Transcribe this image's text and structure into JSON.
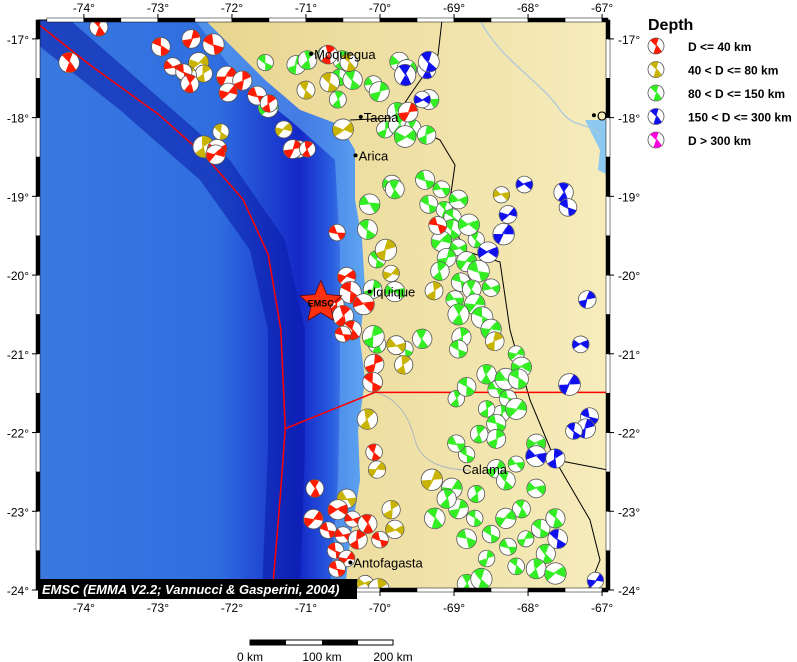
{
  "map": {
    "lon_range": [
      -74.62,
      -66.92
    ],
    "lat_range": [
      -24.0,
      -16.76
    ],
    "lon_ticks": [
      -74,
      -73,
      -72,
      -71,
      -70,
      -69,
      -68,
      -67
    ],
    "lat_ticks": [
      -17,
      -18,
      -19,
      -20,
      -21,
      -22,
      -23,
      -24
    ],
    "lon_tick_labels": [
      "-74°",
      "-73°",
      "-72°",
      "-71°",
      "-70°",
      "-69°",
      "-68°",
      "-67°"
    ],
    "lat_tick_labels": [
      "-17°",
      "-18°",
      "-19°",
      "-20°",
      "-21°",
      "-22°",
      "-23°",
      "-24°"
    ],
    "credit": "EMSC (EMMA V2.2; Vannucci & Gasperini, 2004)",
    "star": {
      "label": "EMSC",
      "lon": -70.8,
      "lat": -20.35,
      "color": "#ff3010"
    },
    "cities": [
      {
        "name": "Moquegua",
        "lon": -70.93,
        "lat": -17.19
      },
      {
        "name": "Tacna",
        "lon": -70.26,
        "lat": -17.99
      },
      {
        "name": "Arica",
        "lon": -70.33,
        "lat": -18.48
      },
      {
        "name": "Iquique",
        "lon": -70.14,
        "lat": -20.21
      },
      {
        "name": "Calama",
        "lon": -68.93,
        "lat": -22.46,
        "nodot": true
      },
      {
        "name": "Antofagasta",
        "lon": -70.4,
        "lat": -23.65
      },
      {
        "name": "O",
        "lon": -67.11,
        "lat": -17.97
      }
    ],
    "plate_boundaries": [
      [
        [
          -74.62,
          -16.81
        ],
        [
          -73.92,
          -17.33
        ],
        [
          -72.99,
          -17.96
        ],
        [
          -72.38,
          -18.47
        ],
        [
          -71.85,
          -19.04
        ],
        [
          -71.51,
          -19.74
        ],
        [
          -71.34,
          -20.69
        ],
        [
          -71.28,
          -21.95
        ],
        [
          -71.35,
          -22.84
        ],
        [
          -71.45,
          -23.98
        ]
      ],
      [
        [
          -71.28,
          -21.95
        ],
        [
          -70.07,
          -21.49
        ],
        [
          -66.92,
          -21.49
        ]
      ]
    ],
    "colors": {
      "d40": "#ff1a00",
      "d80": "#c8b400",
      "d150": "#33ee22",
      "d300": "#1010ee",
      "d300plus": "#ff00dd",
      "plate_boundary": "#ff0000"
    }
  },
  "legend": {
    "title": "Depth",
    "items": [
      {
        "label": "D <= 40 km",
        "class": "d40"
      },
      {
        "label": "40 < D <= 80 km",
        "class": "d80"
      },
      {
        "label": "80 < D <= 150 km",
        "class": "d150"
      },
      {
        "label": "150 < D <= 300 km",
        "class": "d300"
      },
      {
        "label": "D > 300 km",
        "class": "d300plus"
      }
    ]
  },
  "scale_bar": {
    "labels": [
      "0 km",
      "100 km",
      "200 km"
    ]
  },
  "events": {
    "d40": [
      [
        -73.8,
        -16.85
      ],
      [
        -74.2,
        -17.3
      ],
      [
        -72.96,
        -17.1
      ],
      [
        -72.55,
        -17.0
      ],
      [
        -72.25,
        -17.07
      ],
      [
        -72.8,
        -17.35
      ],
      [
        -72.65,
        -17.42
      ],
      [
        -72.57,
        -17.57
      ],
      [
        -72.07,
        -17.48
      ],
      [
        -71.86,
        -17.53
      ],
      [
        -72.05,
        -17.68
      ],
      [
        -71.66,
        -17.72
      ],
      [
        -71.5,
        -17.82
      ],
      [
        -72.2,
        -18.4
      ],
      [
        -72.22,
        -18.47
      ],
      [
        -71.18,
        -18.4
      ],
      [
        -70.98,
        -18.4
      ],
      [
        -70.7,
        -17.2
      ],
      [
        -69.62,
        -17.93
      ],
      [
        -70.58,
        -19.46
      ],
      [
        -70.45,
        -20.02
      ],
      [
        -70.4,
        -20.22
      ],
      [
        -70.6,
        -20.37
      ],
      [
        -70.5,
        -20.52
      ],
      [
        -70.22,
        -20.37
      ],
      [
        -70.38,
        -20.7
      ],
      [
        -70.5,
        -20.75
      ],
      [
        -70.08,
        -21.13
      ],
      [
        -70.1,
        -21.36
      ],
      [
        -70.88,
        -22.71
      ],
      [
        -70.9,
        -23.1
      ],
      [
        -70.57,
        -22.98
      ],
      [
        -70.37,
        -23.1
      ],
      [
        -70.7,
        -23.24
      ],
      [
        -70.5,
        -23.3
      ],
      [
        -70.3,
        -23.36
      ],
      [
        -70.17,
        -23.16
      ],
      [
        -70.6,
        -23.5
      ],
      [
        -70.45,
        -23.6
      ],
      [
        -70.58,
        -23.73
      ],
      [
        -70.0,
        -23.36
      ],
      [
        -70.08,
        -22.25
      ],
      [
        -69.22,
        -19.37
      ]
    ],
    "d80": [
      [
        -72.45,
        -17.3
      ],
      [
        -72.38,
        -17.44
      ],
      [
        -72.6,
        -17.46
      ],
      [
        -72.38,
        -18.37
      ],
      [
        -72.15,
        -18.18
      ],
      [
        -71.3,
        -18.15
      ],
      [
        -71.1,
        -18.4
      ],
      [
        -70.42,
        -17.3
      ],
      [
        -70.68,
        -17.55
      ],
      [
        -70.5,
        -18.15
      ],
      [
        -71.0,
        -17.65
      ],
      [
        -69.92,
        -19.68
      ],
      [
        -69.85,
        -19.98
      ],
      [
        -69.78,
        -20.89
      ],
      [
        -69.68,
        -21.14
      ],
      [
        -69.27,
        -20.2
      ],
      [
        -68.36,
        -18.98
      ],
      [
        -68.45,
        -20.84
      ],
      [
        -69.3,
        -22.6
      ],
      [
        -69.8,
        -23.23
      ],
      [
        -69.85,
        -22.98
      ],
      [
        -70.2,
        -23.92
      ],
      [
        -70.02,
        -23.99
      ],
      [
        -70.45,
        -22.84
      ],
      [
        -70.71,
        -20.37
      ],
      [
        -70.17,
        -21.83
      ],
      [
        -70.04,
        -22.47
      ]
    ],
    "d150": [
      [
        -71.13,
        -17.33
      ],
      [
        -70.73,
        -17.2
      ],
      [
        -70.51,
        -17.27
      ],
      [
        -70.55,
        -17.49
      ],
      [
        -70.37,
        -17.52
      ],
      [
        -70.09,
        -17.58
      ],
      [
        -70.01,
        -17.67
      ],
      [
        -69.74,
        -17.29
      ],
      [
        -69.64,
        -17.39
      ],
      [
        -69.77,
        -17.93
      ],
      [
        -69.93,
        -18.15
      ],
      [
        -69.74,
        -18.09
      ],
      [
        -69.56,
        -18.13
      ],
      [
        -69.66,
        -18.24
      ],
      [
        -69.37,
        -18.22
      ],
      [
        -69.34,
        -17.77
      ],
      [
        -70.57,
        -17.77
      ],
      [
        -69.84,
        -18.85
      ],
      [
        -69.39,
        -18.79
      ],
      [
        -69.17,
        -18.91
      ],
      [
        -69.34,
        -19.1
      ],
      [
        -69.13,
        -19.17
      ],
      [
        -69.02,
        -19.27
      ],
      [
        -68.94,
        -19.04
      ],
      [
        -69.03,
        -19.42
      ],
      [
        -69.17,
        -19.57
      ],
      [
        -68.94,
        -19.65
      ],
      [
        -69.1,
        -19.78
      ],
      [
        -68.7,
        -19.55
      ],
      [
        -68.83,
        -19.83
      ],
      [
        -68.67,
        -19.95
      ],
      [
        -69.19,
        -19.95
      ],
      [
        -68.91,
        -20.09
      ],
      [
        -68.76,
        -20.18
      ],
      [
        -68.5,
        -20.16
      ],
      [
        -68.72,
        -20.37
      ],
      [
        -68.99,
        -20.31
      ],
      [
        -68.94,
        -20.5
      ],
      [
        -68.62,
        -20.54
      ],
      [
        -68.5,
        -20.69
      ],
      [
        -68.9,
        -20.79
      ],
      [
        -68.94,
        -20.94
      ],
      [
        -70.04,
        -19.8
      ],
      [
        -69.8,
        -20.21
      ],
      [
        -70.04,
        -20.88
      ],
      [
        -69.66,
        -20.94
      ],
      [
        -69.43,
        -20.81
      ],
      [
        -68.97,
        -21.57
      ],
      [
        -68.83,
        -21.42
      ],
      [
        -68.56,
        -21.26
      ],
      [
        -68.43,
        -21.45
      ],
      [
        -68.3,
        -21.32
      ],
      [
        -68.16,
        -21.0
      ],
      [
        -68.09,
        -21.17
      ],
      [
        -68.13,
        -21.32
      ],
      [
        -68.27,
        -21.57
      ],
      [
        -68.36,
        -21.76
      ],
      [
        -68.56,
        -21.7
      ],
      [
        -68.43,
        -21.89
      ],
      [
        -68.16,
        -21.7
      ],
      [
        -68.43,
        -22.08
      ],
      [
        -68.66,
        -22.02
      ],
      [
        -68.83,
        -22.28
      ],
      [
        -68.97,
        -22.14
      ],
      [
        -69.03,
        -22.71
      ],
      [
        -68.7,
        -22.78
      ],
      [
        -68.94,
        -22.97
      ],
      [
        -68.43,
        -22.46
      ],
      [
        -68.3,
        -22.61
      ],
      [
        -68.16,
        -22.4
      ],
      [
        -67.89,
        -22.71
      ],
      [
        -68.09,
        -22.97
      ],
      [
        -68.3,
        -23.09
      ],
      [
        -68.5,
        -23.29
      ],
      [
        -68.72,
        -23.09
      ],
      [
        -68.56,
        -23.6
      ],
      [
        -68.27,
        -23.45
      ],
      [
        -68.03,
        -23.35
      ],
      [
        -67.83,
        -23.22
      ],
      [
        -67.63,
        -23.09
      ],
      [
        -67.76,
        -23.54
      ],
      [
        -68.16,
        -23.7
      ],
      [
        -67.89,
        -23.73
      ],
      [
        -67.63,
        -23.79
      ],
      [
        -68.83,
        -23.92
      ],
      [
        -68.63,
        -23.86
      ],
      [
        -67.89,
        -22.14
      ],
      [
        -69.26,
        -23.09
      ],
      [
        -69.1,
        -22.84
      ],
      [
        -68.83,
        -23.35
      ],
      [
        -70.1,
        -20.18
      ],
      [
        -70.09,
        -20.78
      ],
      [
        -70.17,
        -19.42
      ],
      [
        -70.14,
        -19.1
      ],
      [
        -69.8,
        -18.91
      ],
      [
        -68.8,
        -19.36
      ],
      [
        -71.55,
        -17.3
      ],
      [
        -70.98,
        -17.27
      ],
      [
        -71.51,
        -17.87
      ]
    ],
    "d300": [
      [
        -69.66,
        -17.46
      ],
      [
        -69.37,
        -17.39
      ],
      [
        -69.34,
        -17.29
      ],
      [
        -69.43,
        -17.77
      ],
      [
        -68.05,
        -18.85
      ],
      [
        -67.52,
        -18.95
      ],
      [
        -67.46,
        -19.14
      ],
      [
        -68.27,
        -19.23
      ],
      [
        -68.33,
        -19.48
      ],
      [
        -68.54,
        -19.71
      ],
      [
        -67.2,
        -20.31
      ],
      [
        -67.29,
        -20.88
      ],
      [
        -67.44,
        -21.39
      ],
      [
        -67.17,
        -21.8
      ],
      [
        -67.22,
        -21.95
      ],
      [
        -67.38,
        -21.98
      ],
      [
        -67.89,
        -22.3
      ],
      [
        -67.63,
        -22.33
      ],
      [
        -67.6,
        -23.35
      ],
      [
        -67.09,
        -23.88
      ]
    ],
    "d300plus": []
  }
}
